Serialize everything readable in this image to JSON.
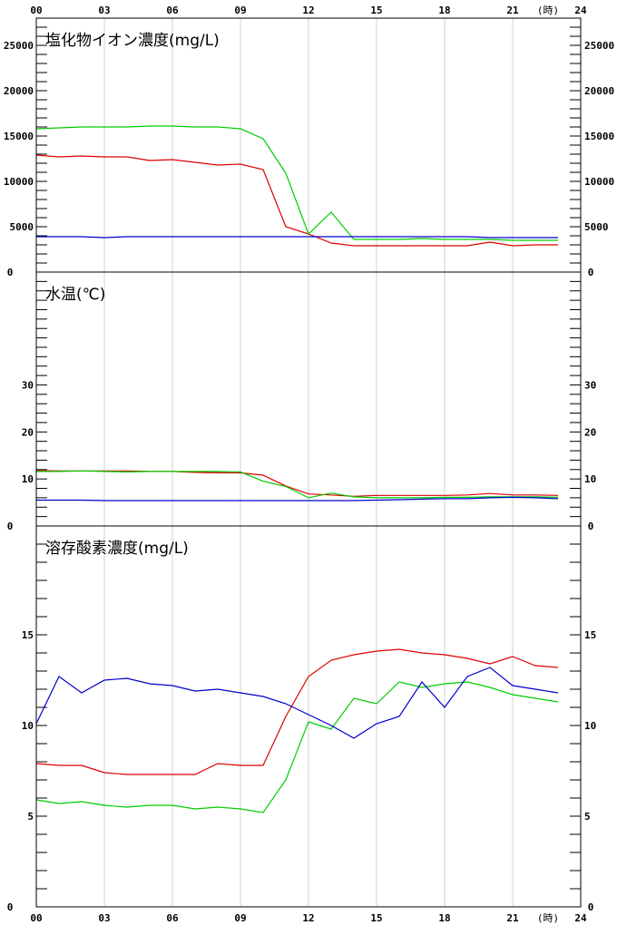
{
  "chart_data": {
    "type": "line",
    "x_ticks": [
      "00",
      "03",
      "06",
      "09",
      "12",
      "15",
      "18",
      "21",
      "24"
    ],
    "x_unit": "(時)",
    "xlim": [
      0,
      24
    ],
    "grid": true,
    "series_colors": [
      "#dd0000",
      "#00cc00",
      "#0000cc"
    ],
    "panels": [
      {
        "title": "塩化物イオン濃度(mg/L)",
        "ylim": [
          0,
          28000
        ],
        "y_ticks": [
          "0",
          "5000",
          "10000",
          "15000",
          "20000",
          "25000"
        ],
        "series": [
          {
            "color": "#dd0000",
            "values": [
              12900,
              12700,
              12800,
              12700,
              12700,
              12300,
              12400,
              12100,
              11800,
              11900,
              11300,
              5000,
              4200,
              3200,
              2900,
              2900,
              2900,
              2900,
              2900,
              2900,
              3300,
              2900,
              3000,
              3000
            ]
          },
          {
            "color": "#00cc00",
            "values": [
              15800,
              15900,
              16000,
              16000,
              16000,
              16100,
              16100,
              16000,
              16000,
              15800,
              14700,
              10900,
              4200,
              6600,
              3600,
              3600,
              3600,
              3700,
              3600,
              3600,
              3600,
              3500,
              3500,
              3500
            ]
          },
          {
            "color": "#0000cc",
            "values": [
              3900,
              3900,
              3900,
              3800,
              3900,
              3900,
              3900,
              3900,
              3900,
              3900,
              3900,
              3900,
              3900,
              3900,
              3900,
              3900,
              3900,
              3900,
              3900,
              3900,
              3800,
              3800,
              3800,
              3800
            ]
          }
        ]
      },
      {
        "title": "水温(℃)",
        "ylim": [
          0,
          54
        ],
        "y_ticks": [
          "0",
          "10",
          "20",
          "30"
        ],
        "series": [
          {
            "color": "#dd0000",
            "values": [
              11.8,
              11.7,
              11.7,
              11.7,
              11.7,
              11.6,
              11.6,
              11.4,
              11.3,
              11.3,
              10.8,
              8.5,
              6.8,
              6.6,
              6.3,
              6.5,
              6.5,
              6.5,
              6.5,
              6.6,
              6.9,
              6.6,
              6.6,
              6.5
            ]
          },
          {
            "color": "#00cc00",
            "values": [
              11.6,
              11.6,
              11.7,
              11.6,
              11.5,
              11.6,
              11.6,
              11.6,
              11.6,
              11.5,
              9.5,
              8.4,
              6.0,
              7.0,
              6.2,
              6.0,
              6.0,
              6.0,
              6.1,
              6.1,
              6.2,
              6.2,
              6.2,
              6.1
            ]
          },
          {
            "color": "#0000cc",
            "values": [
              5.5,
              5.5,
              5.5,
              5.4,
              5.4,
              5.4,
              5.4,
              5.4,
              5.4,
              5.4,
              5.4,
              5.4,
              5.4,
              5.4,
              5.4,
              5.5,
              5.6,
              5.7,
              5.8,
              5.8,
              6.0,
              6.1,
              6.0,
              5.8
            ]
          }
        ]
      },
      {
        "title": "溶存酸素濃度(mg/L)",
        "ylim": [
          0,
          21
        ],
        "y_ticks": [
          "0",
          "5",
          "10",
          "15"
        ],
        "series": [
          {
            "color": "#dd0000",
            "values": [
              7.9,
              7.8,
              7.8,
              7.4,
              7.3,
              7.3,
              7.3,
              7.3,
              7.9,
              7.8,
              7.8,
              10.5,
              12.7,
              13.6,
              13.9,
              14.1,
              14.2,
              14.0,
              13.9,
              13.7,
              13.4,
              13.8,
              13.3,
              13.2
            ]
          },
          {
            "color": "#00cc00",
            "values": [
              5.9,
              5.7,
              5.8,
              5.6,
              5.5,
              5.6,
              5.6,
              5.4,
              5.5,
              5.4,
              5.2,
              7.0,
              10.2,
              9.8,
              11.5,
              11.2,
              12.4,
              12.1,
              12.3,
              12.4,
              12.1,
              11.7,
              11.5,
              11.3
            ]
          },
          {
            "color": "#0000cc",
            "values": [
              10.1,
              12.7,
              11.8,
              12.5,
              12.6,
              12.3,
              12.2,
              11.9,
              12.0,
              11.8,
              11.6,
              11.2,
              10.6,
              10.0,
              9.3,
              10.1,
              10.5,
              12.4,
              11.0,
              12.7,
              13.2,
              12.2,
              12.0,
              11.8
            ]
          }
        ]
      }
    ]
  }
}
